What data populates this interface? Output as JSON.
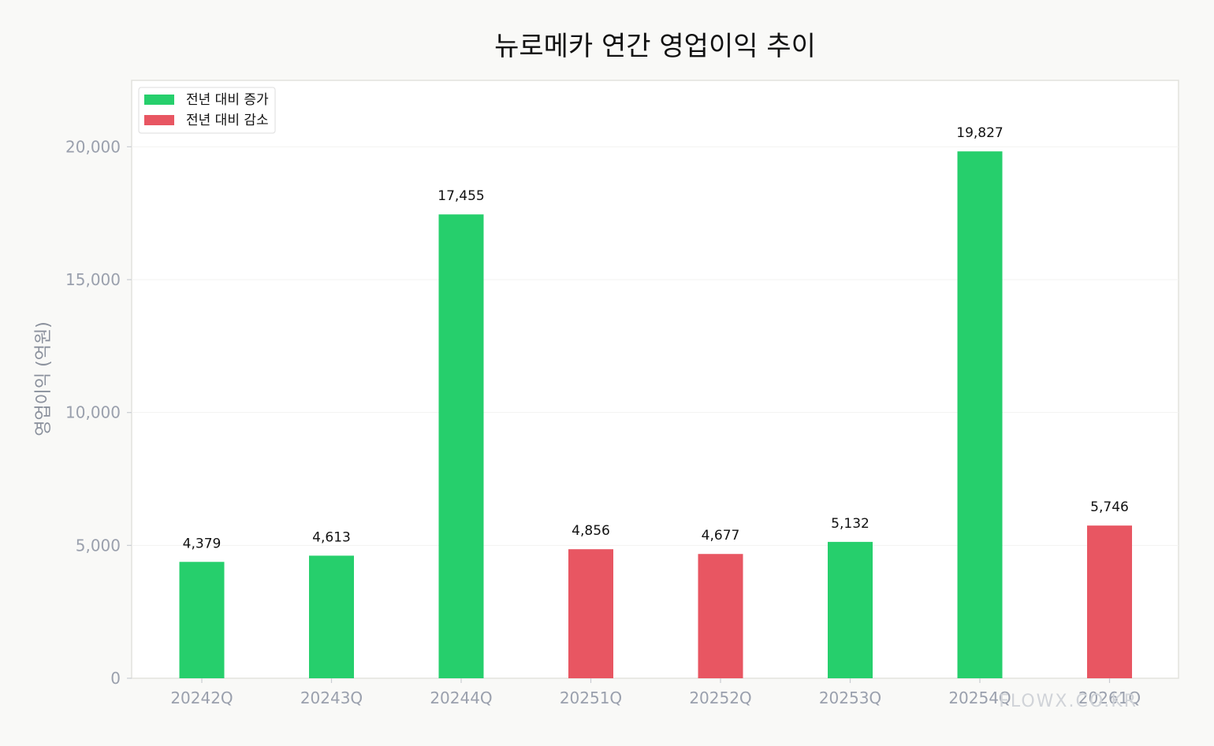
{
  "chart_data": {
    "type": "bar",
    "title": "뉴로메카 연간 영업이익 추이",
    "ylabel": "영업이익 (억원)",
    "ylim": [
      0,
      22500
    ],
    "yticks": [
      0,
      5000,
      10000,
      15000,
      20000
    ],
    "ytick_labels": [
      "0",
      "5,000",
      "10,000",
      "15,000",
      "20,000"
    ],
    "grid": true,
    "legend_position": "top-left",
    "categories": [
      "20242Q",
      "20243Q",
      "20244Q",
      "20251Q",
      "20252Q",
      "20253Q",
      "20254Q",
      "20261Q"
    ],
    "values": [
      4379,
      4613,
      17455,
      4856,
      4677,
      5132,
      19827,
      5746
    ],
    "value_labels": [
      "4,379",
      "4,613",
      "17,455",
      "4,856",
      "4,677",
      "5,132",
      "19,827",
      "5,746"
    ],
    "status": [
      "increase",
      "increase",
      "increase",
      "decrease",
      "decrease",
      "increase",
      "increase",
      "decrease"
    ],
    "legend": [
      {
        "key": "increase",
        "label": "전년 대비 증가",
        "color": "#26cf6c"
      },
      {
        "key": "decrease",
        "label": "전년 대비 감소",
        "color": "#e85662"
      }
    ]
  },
  "watermark": "FLOWX.CO.KR"
}
